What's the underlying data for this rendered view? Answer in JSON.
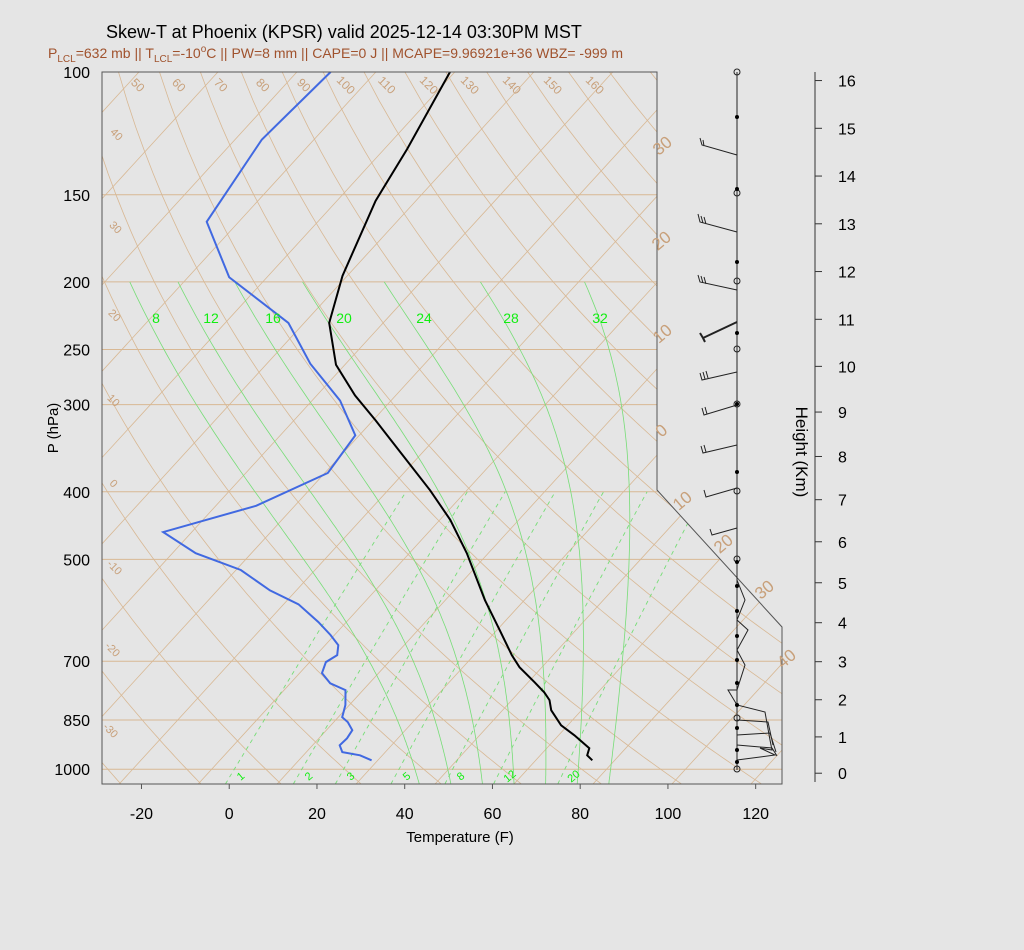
{
  "chart_data": {
    "type": "skewt",
    "title": "Skew-T at Phoenix (KPSR) valid 2025-12-14 03:30PM MST",
    "subtitle": [
      "P",
      "LCL",
      "=632 mb || T",
      "LCL",
      "=-10",
      "o",
      "C || PW=8 mm || CAPE=0 J || MCAPE=9.96921e+36 WBZ= -999 m"
    ],
    "x_label": "Temperature (F)",
    "y_label": "P (hPa)",
    "height_label": "Height (Km)",
    "xlim": [
      -29,
      126
    ],
    "ylim": [
      1050,
      100
    ],
    "log_y": true,
    "xticks": [
      -20,
      0,
      20,
      40,
      60,
      80,
      100,
      120
    ],
    "yticks": [
      100,
      150,
      200,
      250,
      300,
      400,
      500,
      700,
      850,
      1000
    ],
    "height_ticks": [
      0,
      1,
      2,
      3,
      4,
      5,
      6,
      7,
      8,
      9,
      10,
      11,
      12,
      13,
      14,
      15,
      16
    ],
    "isotherm_labels_left": [
      40,
      30,
      20,
      10,
      0,
      -10,
      -20,
      -30
    ],
    "isotherm_labels_right": [
      30,
      20,
      10,
      0,
      10,
      20,
      30,
      40
    ],
    "dry_adiabat_labels": [
      50,
      60,
      70,
      80,
      90,
      100,
      110,
      120,
      130,
      140,
      150,
      160
    ],
    "moist_adiabat_labels": [
      8,
      12,
      16,
      20,
      24,
      28,
      32
    ],
    "mixing_ratio_labels": [
      1,
      2,
      3,
      5,
      8,
      12,
      20
    ],
    "series": [
      {
        "color": "#000000",
        "pressure": [
          971,
          955,
          933,
          894,
          865,
          823,
          796,
          776,
          750,
          714,
          686,
          632,
          572,
          490,
          439,
          398,
          351,
          316,
          291,
          263,
          229,
          196,
          153,
          129,
          100
        ],
        "values": [
          80.9,
          78.7,
          77.7,
          71.6,
          66.5,
          61.1,
          58.6,
          55.8,
          51.4,
          44.9,
          40.6,
          32.7,
          23.0,
          9.1,
          -1.6,
          -12.4,
          -27.1,
          -39.4,
          -49.3,
          -60.0,
          -70.3,
          -77.1,
          -85.2,
          -88.8,
          -95.1
        ]
      },
      {
        "color": "#4169e1",
        "pressure": [
          971,
          955,
          945,
          924,
          903,
          879,
          856,
          842,
          809,
          770,
          753,
          728,
          702,
          686,
          664,
          642,
          615,
          580,
          554,
          518,
          490,
          457,
          419,
          376,
          332,
          296,
          262,
          229,
          197,
          164,
          125,
          100
        ],
        "values": [
          30.6,
          26.9,
          22.2,
          20.2,
          20.4,
          19.9,
          17.2,
          14.9,
          13.1,
          10.0,
          5.1,
          1.1,
          -0.3,
          0.8,
          -1.0,
          -4.9,
          -10.4,
          -18.6,
          -28.0,
          -38.9,
          -52.7,
          -64.5,
          -48.8,
          -39.3,
          -40.9,
          -51.6,
          -66.1,
          -79.6,
          -102.6,
          -119.3,
          -123.9,
          -122.3
        ]
      }
    ]
  }
}
